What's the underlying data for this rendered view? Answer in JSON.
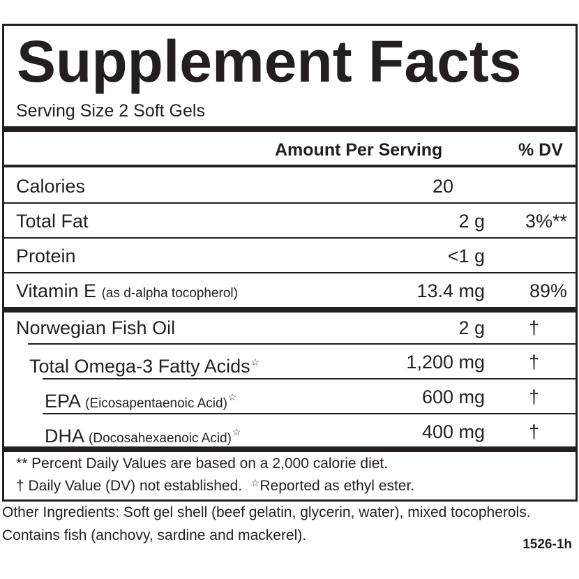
{
  "panel": {
    "title": "Supplement Facts",
    "serving_size": "Serving Size 2 Soft Gels",
    "header": {
      "amount": "Amount Per Serving",
      "dv": "% DV"
    },
    "rows": [
      {
        "name": "Calories",
        "detail": "",
        "amount": "20",
        "dv": ""
      },
      {
        "name": "Total Fat",
        "detail": "",
        "amount": "2 g",
        "dv": "3%**"
      },
      {
        "name": "Protein",
        "detail": "",
        "amount": "<1 g",
        "dv": ""
      },
      {
        "name": "Vitamin E",
        "detail": "(as d-alpha tocopherol)",
        "amount": "13.4 mg",
        "dv": "89%"
      }
    ],
    "oil_rows": [
      {
        "name": "Norwegian Fish Oil",
        "detail": "",
        "amount": "2 g",
        "dv": "†",
        "star": ""
      },
      {
        "name": "Total Omega-3 Fatty Acids",
        "detail": "",
        "amount": "1,200 mg",
        "dv": "†",
        "star": "☆"
      },
      {
        "name": "EPA",
        "detail": "(Eicosapentaenoic Acid)",
        "amount": "600 mg",
        "dv": "†",
        "star": "☆"
      },
      {
        "name": "DHA",
        "detail": "(Docosahexaenoic Acid)",
        "amount": "400 mg",
        "dv": "†",
        "star": "☆"
      }
    ],
    "footnotes": {
      "line1": "** Percent Daily Values are based on a 2,000 calorie diet.",
      "line2a": "† Daily Value (DV) not established.",
      "line2_star": "☆",
      "line2b": "Reported as ethyl ester."
    }
  },
  "other_ingredients": "Other Ingredients: Soft gel shell (beef gelatin, glycerin, water), mixed tocopherols. Contains fish (anchovy, sardine and mackerel).",
  "product_code": "1526-1h"
}
